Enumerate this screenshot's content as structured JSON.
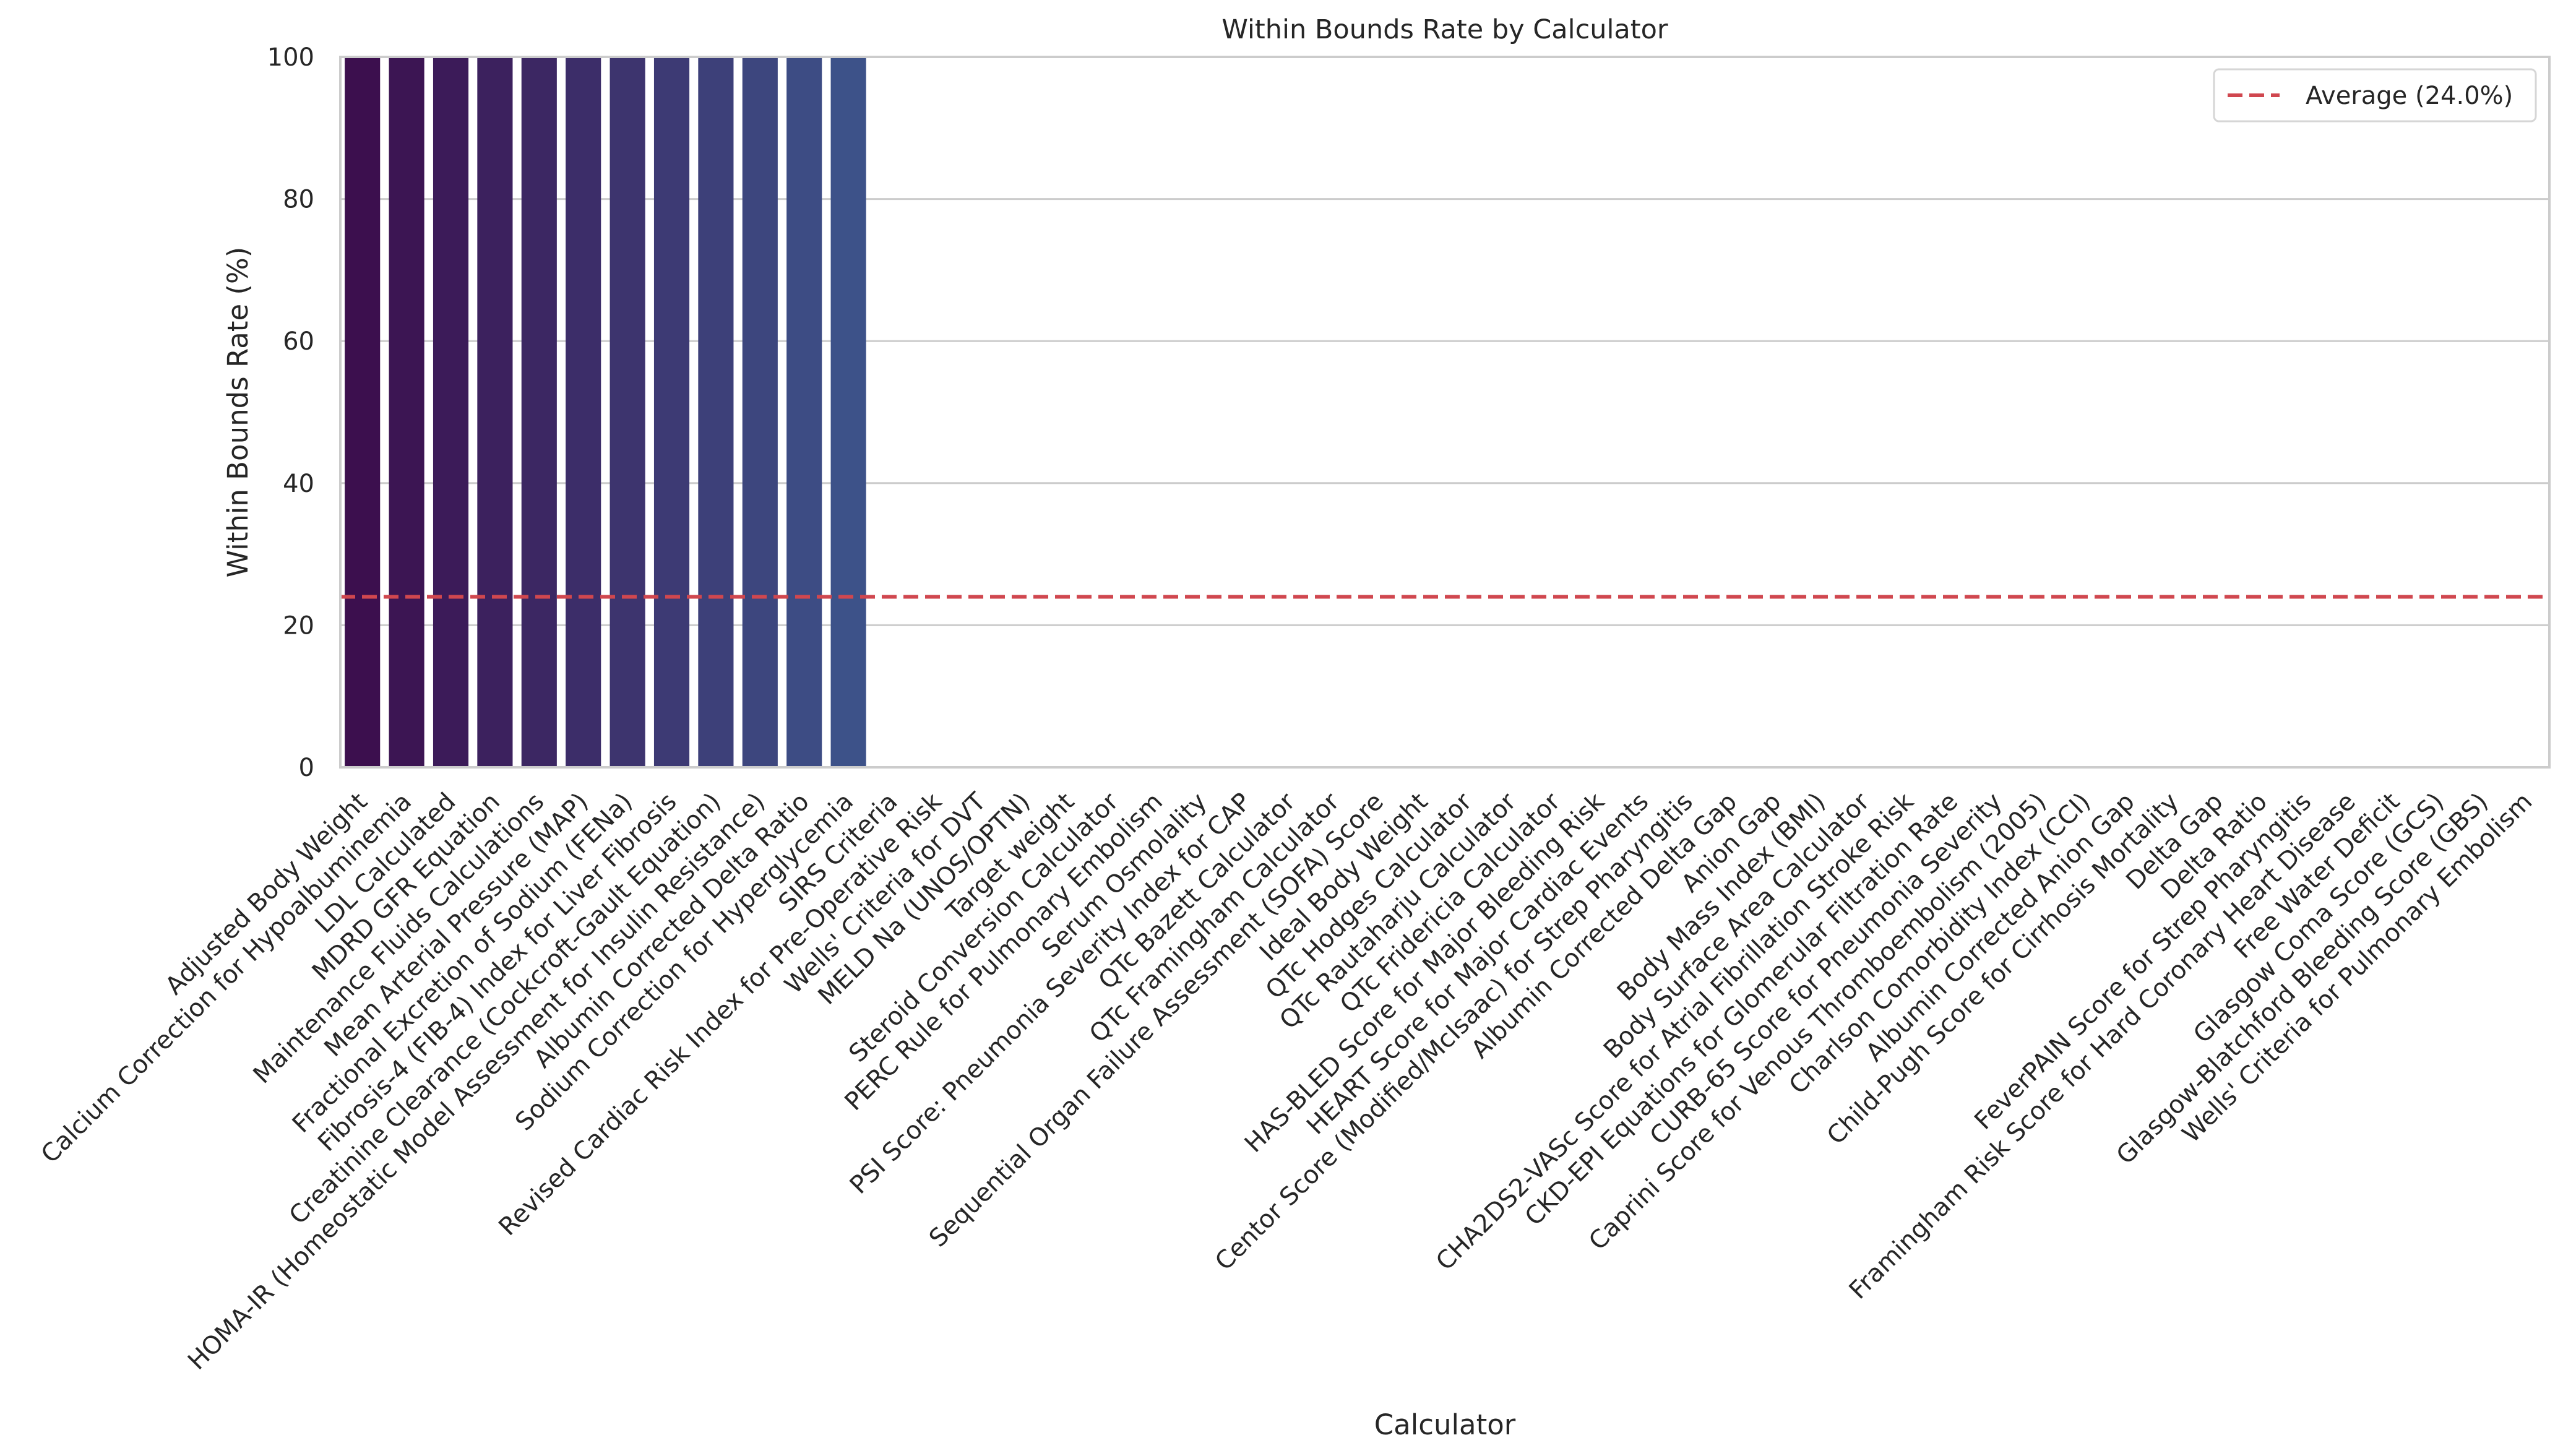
{
  "chart_data": {
    "type": "bar",
    "title": "Within Bounds Rate by Calculator",
    "xlabel": "Calculator",
    "ylabel": "Within Bounds Rate (%)",
    "ylim": [
      0,
      100
    ],
    "yticks": [
      0,
      20,
      40,
      60,
      80,
      100
    ],
    "grid": true,
    "legend_placement": "top-right",
    "average": {
      "label": "Average (24.0%)",
      "value": 24.0,
      "color": "#d0474f"
    },
    "categories": [
      "Adjusted Body Weight",
      "Calcium Correction for Hypoalbuminemia",
      "LDL Calculated",
      "MDRD GFR Equation",
      "Maintenance Fluids Calculations",
      "Mean Arterial Pressure (MAP)",
      "Fractional Excretion of Sodium (FENa)",
      "Fibrosis-4 (FIB-4) Index for Liver Fibrosis",
      "Creatinine Clearance (Cockcroft-Gault Equation)",
      "HOMA-IR (Homeostatic Model Assessment for Insulin Resistance)",
      "Albumin Corrected Delta Ratio",
      "Sodium Correction for Hyperglycemia",
      "SIRS Criteria",
      "Revised Cardiac Risk Index for Pre-Operative Risk",
      "Wells' Criteria for DVT",
      "MELD Na (UNOS/OPTN)",
      "Target weight",
      "Steroid Conversion Calculator",
      "PERC Rule for Pulmonary Embolism",
      "Serum Osmolality",
      "PSI Score: Pneumonia Severity Index for CAP",
      "QTc Bazett Calculator",
      "QTc Framingham Calculator",
      "Sequential Organ Failure Assessment (SOFA) Score",
      "Ideal Body Weight",
      "QTc Hodges Calculator",
      "QTc Rautaharju Calculator",
      "QTc Fridericia Calculator",
      "HAS-BLED Score for Major Bleeding Risk",
      "HEART Score for Major Cardiac Events",
      "Centor Score (Modified/McIsaac) for Strep Pharyngitis",
      "Albumin Corrected Delta Gap",
      "Anion Gap",
      "Body Mass Index (BMI)",
      "Body Surface Area Calculator",
      "CHA2DS2-VASc Score for Atrial Fibrillation Stroke Risk",
      "CKD-EPI Equations for Glomerular Filtration Rate",
      "CURB-65 Score for Pneumonia Severity",
      "Caprini Score for Venous Thromboembolism (2005)",
      "Charlson Comorbidity Index (CCI)",
      "Albumin Corrected Anion Gap",
      "Child-Pugh Score for Cirrhosis Mortality",
      "Delta Gap",
      "Delta Ratio",
      "FeverPAIN Score for Strep Pharyngitis",
      "Framingham Risk Score for Hard Coronary Heart Disease",
      "Free Water Deficit",
      "Glasgow Coma Score (GCS)",
      "Glasgow-Blatchford Bleeding Score (GBS)",
      "Wells' Criteria for Pulmonary Embolism"
    ],
    "values": [
      100,
      100,
      100,
      100,
      100,
      100,
      100,
      100,
      100,
      100,
      100,
      100,
      0,
      0,
      0,
      0,
      0,
      0,
      0,
      0,
      0,
      0,
      0,
      0,
      0,
      0,
      0,
      0,
      0,
      0,
      0,
      0,
      0,
      0,
      0,
      0,
      0,
      0,
      0,
      0,
      0,
      0,
      0,
      0,
      0,
      0,
      0,
      0,
      0,
      0
    ],
    "palette_start": "#3c0f4e",
    "palette_end": "#3d5289"
  }
}
